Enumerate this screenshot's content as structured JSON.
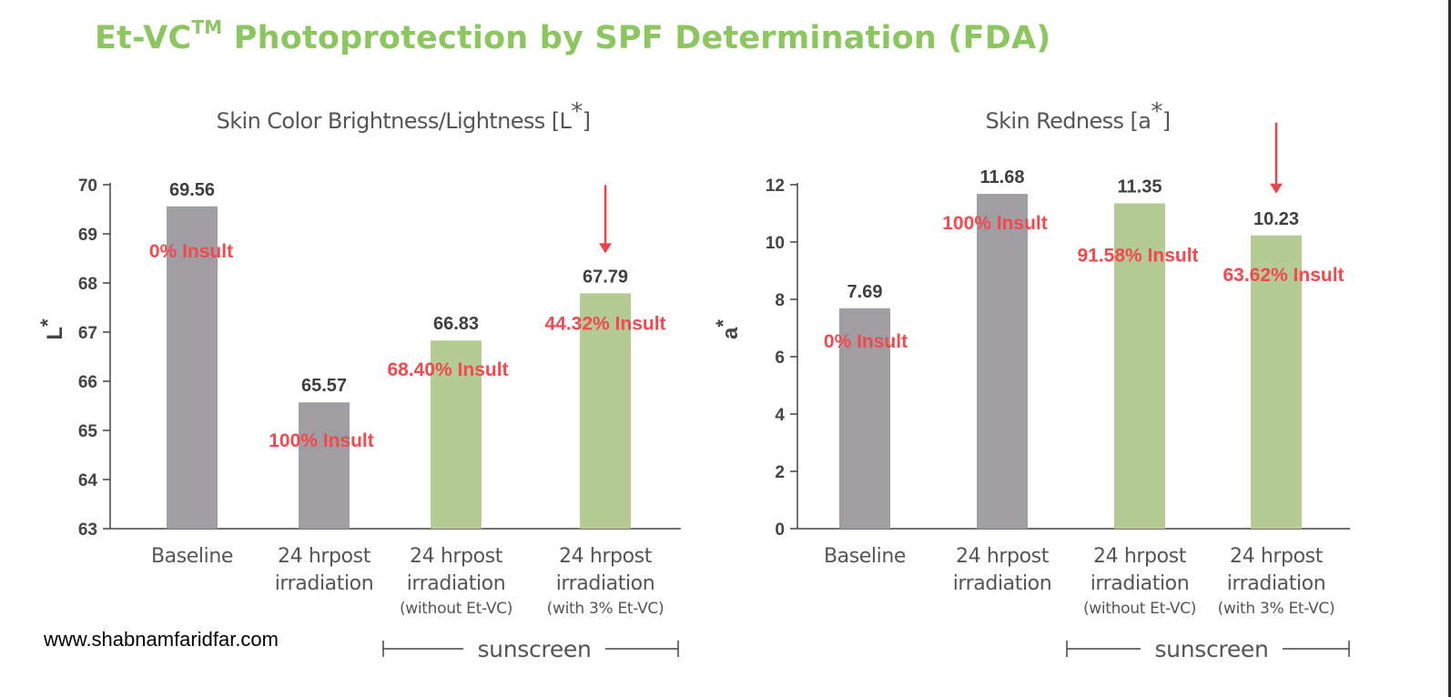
{
  "title": {
    "prefix": "Et-VC",
    "superscript": "TM",
    "suffix": " Photoprotection by SPF Determination (FDA)"
  },
  "website": "www.shabnamfaridfar.com",
  "colors": {
    "title": "#8cc65e",
    "gray_bar": "#a09ea2",
    "green_bar": "#b4cc94",
    "insult_text": "#f2484e",
    "arrow": "#e8454b"
  },
  "chart_data": [
    {
      "type": "bar",
      "title": "Skin Color Brightness/Lightness [L*]",
      "ylabel": "L*",
      "ylim": [
        63,
        70
      ],
      "yticks": [
        63,
        64,
        65,
        66,
        67,
        68,
        69,
        70
      ],
      "categories": [
        [
          "Baseline"
        ],
        [
          "24 hrpost",
          "irradiation"
        ],
        [
          "24 hrpost",
          "irradiation",
          "(without Et-VC)"
        ],
        [
          "24 hrpost",
          "irradiation",
          "(with 3% Et-VC)"
        ]
      ],
      "values": [
        69.56,
        65.57,
        66.83,
        67.79
      ],
      "value_labels": [
        "69.56",
        "65.57",
        "66.83",
        "67.79"
      ],
      "bar_colors": [
        "gray",
        "gray",
        "green",
        "green"
      ],
      "annotations": [
        "0% Insult",
        "100% Insult",
        "68.40% Insult",
        "44.32% Insult"
      ],
      "arrow_on_category": 3,
      "group_label": "sunscreen",
      "group_categories": [
        2,
        3
      ]
    },
    {
      "type": "bar",
      "title": "Skin Redness [a*]",
      "ylabel": "a*",
      "ylim": [
        0,
        12
      ],
      "yticks": [
        0,
        2,
        4,
        6,
        8,
        10,
        12
      ],
      "categories": [
        [
          "Baseline"
        ],
        [
          "24 hrpost",
          "irradiation"
        ],
        [
          "24 hrpost",
          "irradiation",
          "(without Et-VC)"
        ],
        [
          "24 hrpost",
          "irradiation",
          "(with 3% Et-VC)"
        ]
      ],
      "values": [
        7.69,
        11.68,
        11.35,
        10.23
      ],
      "value_labels": [
        "7.69",
        "11.68",
        "11.35",
        "10.23"
      ],
      "bar_colors": [
        "gray",
        "gray",
        "green",
        "green"
      ],
      "annotations": [
        "0% Insult",
        "100% Insult",
        "91.58% Insult",
        "63.62% Insult"
      ],
      "arrow_on_category": 3,
      "group_label": "sunscreen",
      "group_categories": [
        2,
        3
      ]
    }
  ]
}
